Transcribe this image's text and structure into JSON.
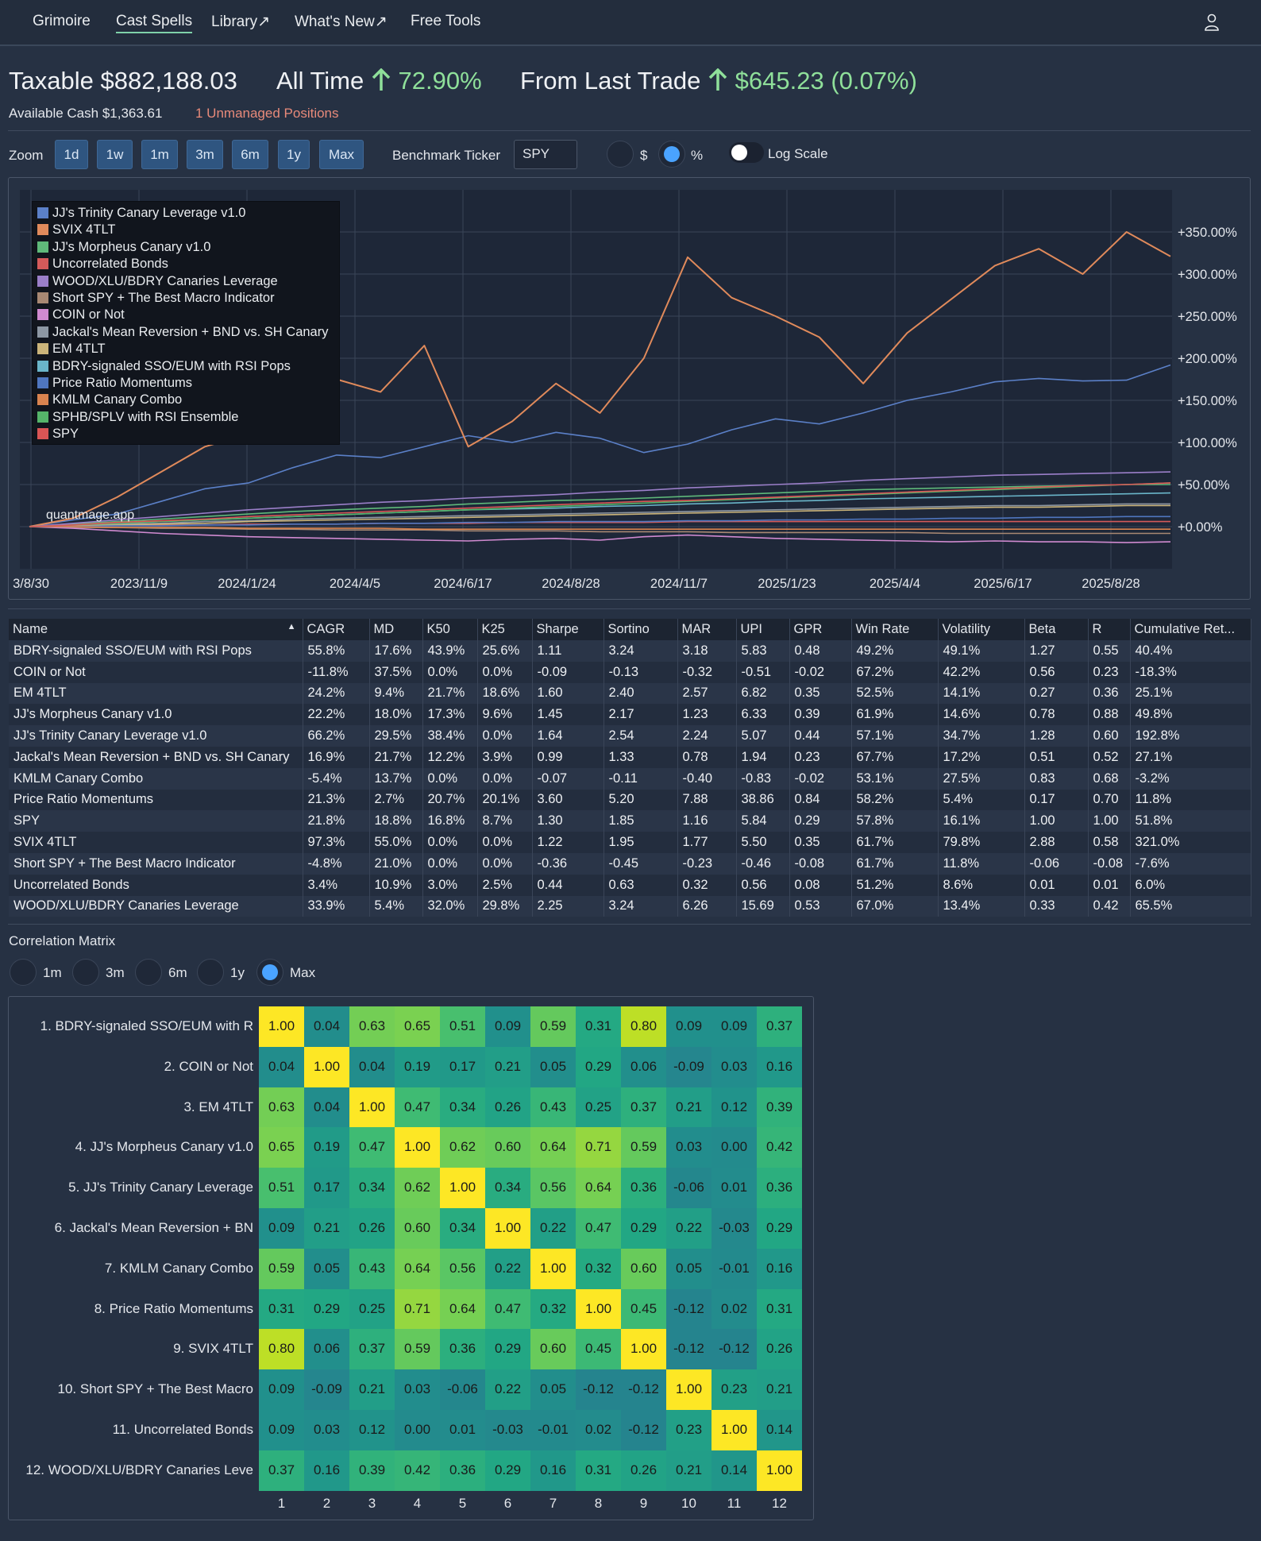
{
  "nav": {
    "items": [
      "Grimoire",
      "Cast Spells",
      "Library↗",
      "What's New↗",
      "Free Tools"
    ],
    "active": "Cast Spells"
  },
  "header": {
    "account": "Taxable",
    "value": "$882,188.03",
    "all_time_label": "All Time",
    "all_time_value": "72.90%",
    "last_trade_label": "From Last Trade",
    "last_trade_value": "$645.23 (0.07%)",
    "available_cash_label": "Available Cash",
    "available_cash": "$1,363.61",
    "unmanaged": "1 Unmanaged Positions"
  },
  "controls": {
    "zoom_label": "Zoom",
    "zoom_buttons": [
      "1d",
      "1w",
      "1m",
      "3m",
      "6m",
      "1y",
      "Max"
    ],
    "benchmark_label": "Benchmark Ticker",
    "benchmark_value": "SPY",
    "mode_options": [
      "$",
      "%"
    ],
    "mode_selected": "%",
    "log_scale_label": "Log Scale",
    "log_scale_on": false
  },
  "chart_data": {
    "type": "line",
    "watermark": "quantmage.app",
    "x_tick_labels": [
      "3/8/30",
      "2023/11/9",
      "2024/1/24",
      "2024/4/5",
      "2024/6/17",
      "2024/8/28",
      "2024/11/7",
      "2025/1/23",
      "2025/4/4",
      "2025/6/17",
      "2025/8/28"
    ],
    "y_tick_labels": [
      "+350.00%",
      "+300.00%",
      "+250.00%",
      "+200.00%",
      "+150.00%",
      "+100.00%",
      "+50.00%",
      "+0.00%"
    ],
    "y_ticks": [
      350,
      300,
      250,
      200,
      150,
      100,
      50,
      0
    ],
    "ylim": [
      -50,
      400
    ],
    "legend_position": "top-left",
    "series": [
      {
        "name": "JJ's Trinity Canary Leverage v1.0",
        "color": "#5b80c8",
        "values": [
          0,
          8,
          15,
          30,
          45,
          52,
          70,
          85,
          82,
          95,
          108,
          100,
          112,
          105,
          88,
          98,
          115,
          128,
          122,
          135,
          150,
          160,
          172,
          176,
          173,
          174,
          192
        ]
      },
      {
        "name": "SVIX 4TLT",
        "color": "#e08a5b",
        "values": [
          0,
          10,
          35,
          65,
          95,
          110,
          140,
          175,
          160,
          215,
          95,
          125,
          170,
          135,
          200,
          320,
          272,
          250,
          225,
          170,
          230,
          270,
          310,
          330,
          300,
          350,
          321
        ]
      },
      {
        "name": "JJ's Morpheus Canary v1.0",
        "color": "#5fb97a",
        "values": [
          0,
          3,
          6,
          9,
          12,
          15,
          18,
          20,
          22,
          24,
          27,
          29,
          31,
          32,
          34,
          36,
          38,
          40,
          42,
          44,
          45,
          46,
          47,
          48,
          49,
          50,
          50
        ]
      },
      {
        "name": "Uncorrelated Bonds",
        "color": "#d45a5a",
        "values": [
          0,
          1,
          1,
          2,
          2,
          3,
          3,
          3,
          4,
          4,
          4,
          5,
          5,
          5,
          5,
          6,
          6,
          6,
          6,
          6,
          6,
          6,
          6,
          6,
          6,
          6,
          6
        ]
      },
      {
        "name": "WOOD/XLU/BDRY Canaries Leverage",
        "color": "#9b7fc9",
        "values": [
          0,
          4,
          8,
          12,
          16,
          20,
          23,
          26,
          29,
          31,
          34,
          36,
          38,
          41,
          43,
          46,
          48,
          50,
          52,
          55,
          57,
          59,
          61,
          62,
          63,
          64,
          65
        ]
      },
      {
        "name": "Short SPY + The Best Macro Indicator",
        "color": "#a88873",
        "values": [
          0,
          -1,
          -1,
          -2,
          -2,
          -3,
          -3,
          -4,
          -4,
          -4,
          -5,
          -5,
          -5,
          -6,
          -6,
          -6,
          -7,
          -7,
          -7,
          -7,
          -7,
          -8,
          -8,
          -8,
          -8,
          -8,
          -8
        ]
      },
      {
        "name": "COIN or Not",
        "color": "#d08ad0",
        "values": [
          0,
          -2,
          -5,
          -8,
          -10,
          -12,
          -13,
          -14,
          -15,
          -16,
          -17,
          -15,
          -14,
          -16,
          -12,
          -10,
          -12,
          -14,
          -15,
          -16,
          -17,
          -18,
          -17,
          -18,
          -18,
          -19,
          -18
        ]
      },
      {
        "name": "Jackal's Mean Reversion + BND vs. SH Canary",
        "color": "#8d97a3",
        "values": [
          0,
          1,
          3,
          4,
          6,
          7,
          9,
          10,
          11,
          12,
          13,
          14,
          15,
          16,
          17,
          18,
          19,
          20,
          21,
          22,
          23,
          24,
          25,
          25,
          26,
          27,
          27
        ]
      },
      {
        "name": "EM 4TLT",
        "color": "#cbb47a",
        "values": [
          0,
          1,
          2,
          3,
          4,
          6,
          7,
          8,
          9,
          10,
          11,
          12,
          13,
          14,
          15,
          16,
          17,
          18,
          19,
          20,
          21,
          22,
          23,
          23,
          24,
          25,
          25
        ]
      },
      {
        "name": "BDRY-signaled SSO/EUM with RSI Pops",
        "color": "#6ab5c9",
        "values": [
          0,
          2,
          4,
          6,
          8,
          10,
          12,
          14,
          16,
          18,
          20,
          21,
          22,
          24,
          25,
          27,
          28,
          30,
          31,
          33,
          34,
          35,
          36,
          37,
          38,
          39,
          40
        ]
      },
      {
        "name": "Price Ratio Momentums",
        "color": "#4f76bf",
        "values": [
          0,
          0,
          1,
          1,
          2,
          2,
          3,
          3,
          4,
          4,
          5,
          5,
          6,
          6,
          6,
          7,
          7,
          8,
          8,
          9,
          9,
          10,
          10,
          11,
          11,
          12,
          12
        ]
      },
      {
        "name": "KMLM Canary Combo",
        "color": "#d9834f",
        "values": [
          0,
          0,
          -1,
          -1,
          -1,
          -2,
          -2,
          -2,
          -2,
          -3,
          -3,
          -3,
          -3,
          -3,
          -3,
          -3,
          -3,
          -3,
          -3,
          -3,
          -3,
          -3,
          -3,
          -3,
          -3,
          -3,
          -3
        ]
      },
      {
        "name": "SPHB/SPLV with RSI Ensemble",
        "color": "#55b46a",
        "values": [
          0,
          2,
          4,
          6,
          8,
          10,
          12,
          14,
          16,
          18,
          20,
          22,
          24,
          26,
          28,
          30,
          32,
          34,
          36,
          38,
          40,
          42,
          44,
          46,
          48,
          50,
          52
        ]
      },
      {
        "name": "SPY",
        "color": "#d95555",
        "values": [
          0,
          2,
          5,
          7,
          9,
          12,
          14,
          16,
          18,
          20,
          22,
          24,
          26,
          28,
          30,
          31,
          33,
          35,
          37,
          39,
          41,
          43,
          45,
          47,
          49,
          50,
          52
        ]
      }
    ]
  },
  "table": {
    "columns": [
      "Name",
      "CAGR",
      "MD",
      "K50",
      "K25",
      "Sharpe",
      "Sortino",
      "MAR",
      "UPI",
      "GPR",
      "Win Rate",
      "Volatility",
      "Beta",
      "R",
      "Cumulative Ret..."
    ],
    "rows": [
      [
        "BDRY-signaled SSO/EUM with RSI Pops",
        "55.8%",
        "17.6%",
        "43.9%",
        "25.6%",
        "1.11",
        "3.24",
        "3.18",
        "5.83",
        "0.48",
        "49.2%",
        "49.1%",
        "1.27",
        "0.55",
        "40.4%"
      ],
      [
        "COIN or Not",
        "-11.8%",
        "37.5%",
        "0.0%",
        "0.0%",
        "-0.09",
        "-0.13",
        "-0.32",
        "-0.51",
        "-0.02",
        "67.2%",
        "42.2%",
        "0.56",
        "0.23",
        "-18.3%"
      ],
      [
        "EM 4TLT",
        "24.2%",
        "9.4%",
        "21.7%",
        "18.6%",
        "1.60",
        "2.40",
        "2.57",
        "6.82",
        "0.35",
        "52.5%",
        "14.1%",
        "0.27",
        "0.36",
        "25.1%"
      ],
      [
        "JJ's Morpheus Canary v1.0",
        "22.2%",
        "18.0%",
        "17.3%",
        "9.6%",
        "1.45",
        "2.17",
        "1.23",
        "6.33",
        "0.39",
        "61.9%",
        "14.6%",
        "0.78",
        "0.88",
        "49.8%"
      ],
      [
        "JJ's Trinity Canary Leverage v1.0",
        "66.2%",
        "29.5%",
        "38.4%",
        "0.0%",
        "1.64",
        "2.54",
        "2.24",
        "5.07",
        "0.44",
        "57.1%",
        "34.7%",
        "1.28",
        "0.60",
        "192.8%"
      ],
      [
        "Jackal's Mean Reversion + BND vs. SH Canary",
        "16.9%",
        "21.7%",
        "12.2%",
        "3.9%",
        "0.99",
        "1.33",
        "0.78",
        "1.94",
        "0.23",
        "67.7%",
        "17.2%",
        "0.51",
        "0.52",
        "27.1%"
      ],
      [
        "KMLM Canary Combo",
        "-5.4%",
        "13.7%",
        "0.0%",
        "0.0%",
        "-0.07",
        "-0.11",
        "-0.40",
        "-0.83",
        "-0.02",
        "53.1%",
        "27.5%",
        "0.83",
        "0.68",
        "-3.2%"
      ],
      [
        "Price Ratio Momentums",
        "21.3%",
        "2.7%",
        "20.7%",
        "20.1%",
        "3.60",
        "5.20",
        "7.88",
        "38.86",
        "0.84",
        "58.2%",
        "5.4%",
        "0.17",
        "0.70",
        "11.8%"
      ],
      [
        "SPY",
        "21.8%",
        "18.8%",
        "16.8%",
        "8.7%",
        "1.30",
        "1.85",
        "1.16",
        "5.84",
        "0.29",
        "57.8%",
        "16.1%",
        "1.00",
        "1.00",
        "51.8%"
      ],
      [
        "SVIX 4TLT",
        "97.3%",
        "55.0%",
        "0.0%",
        "0.0%",
        "1.22",
        "1.95",
        "1.77",
        "5.50",
        "0.35",
        "61.7%",
        "79.8%",
        "2.88",
        "0.58",
        "321.0%"
      ],
      [
        "Short SPY + The Best Macro Indicator",
        "-4.8%",
        "21.0%",
        "0.0%",
        "0.0%",
        "-0.36",
        "-0.45",
        "-0.23",
        "-0.46",
        "-0.08",
        "61.7%",
        "11.8%",
        "-0.06",
        "-0.08",
        "-7.6%"
      ],
      [
        "Uncorrelated Bonds",
        "3.4%",
        "10.9%",
        "3.0%",
        "2.5%",
        "0.44",
        "0.63",
        "0.32",
        "0.56",
        "0.08",
        "51.2%",
        "8.6%",
        "0.01",
        "0.01",
        "6.0%"
      ],
      [
        "WOOD/XLU/BDRY Canaries Leverage",
        "33.9%",
        "5.4%",
        "32.0%",
        "29.8%",
        "2.25",
        "3.24",
        "6.26",
        "15.69",
        "0.53",
        "67.0%",
        "13.4%",
        "0.33",
        "0.42",
        "65.5%"
      ]
    ]
  },
  "correlation": {
    "title": "Correlation Matrix",
    "periods": [
      "1m",
      "3m",
      "6m",
      "1y",
      "Max"
    ],
    "selected_period": "Max",
    "labels": [
      "1. BDRY-signaled SSO/EUM with R",
      "2. COIN or Not",
      "3. EM 4TLT",
      "4. JJ's Morpheus Canary v1.0",
      "5. JJ's Trinity Canary Leverage",
      "6. Jackal's Mean Reversion + BN",
      "7. KMLM Canary Combo",
      "8. Price Ratio Momentums",
      "9. SVIX 4TLT",
      "10. Short SPY + The Best Macro",
      "11. Uncorrelated Bonds",
      "12. WOOD/XLU/BDRY Canaries Leve"
    ],
    "col_labels": [
      "1",
      "2",
      "3",
      "4",
      "5",
      "6",
      "7",
      "8",
      "9",
      "10",
      "11",
      "12"
    ],
    "matrix": [
      [
        "1.00",
        "0.04",
        "0.63",
        "0.65",
        "0.51",
        "0.09",
        "0.59",
        "0.31",
        "0.80",
        "0.09",
        "0.09",
        "0.37"
      ],
      [
        "0.04",
        "1.00",
        "0.04",
        "0.19",
        "0.17",
        "0.21",
        "0.05",
        "0.29",
        "0.06",
        "-0.09",
        "0.03",
        "0.16"
      ],
      [
        "0.63",
        "0.04",
        "1.00",
        "0.47",
        "0.34",
        "0.26",
        "0.43",
        "0.25",
        "0.37",
        "0.21",
        "0.12",
        "0.39"
      ],
      [
        "0.65",
        "0.19",
        "0.47",
        "1.00",
        "0.62",
        "0.60",
        "0.64",
        "0.71",
        "0.59",
        "0.03",
        "0.00",
        "0.42"
      ],
      [
        "0.51",
        "0.17",
        "0.34",
        "0.62",
        "1.00",
        "0.34",
        "0.56",
        "0.64",
        "0.36",
        "-0.06",
        "0.01",
        "0.36"
      ],
      [
        "0.09",
        "0.21",
        "0.26",
        "0.60",
        "0.34",
        "1.00",
        "0.22",
        "0.47",
        "0.29",
        "0.22",
        "-0.03",
        "0.29"
      ],
      [
        "0.59",
        "0.05",
        "0.43",
        "0.64",
        "0.56",
        "0.22",
        "1.00",
        "0.32",
        "0.60",
        "0.05",
        "-0.01",
        "0.16"
      ],
      [
        "0.31",
        "0.29",
        "0.25",
        "0.71",
        "0.64",
        "0.47",
        "0.32",
        "1.00",
        "0.45",
        "-0.12",
        "0.02",
        "0.31"
      ],
      [
        "0.80",
        "0.06",
        "0.37",
        "0.59",
        "0.36",
        "0.29",
        "0.60",
        "0.45",
        "1.00",
        "-0.12",
        "-0.12",
        "0.26"
      ],
      [
        "0.09",
        "-0.09",
        "0.21",
        "0.03",
        "-0.06",
        "0.22",
        "0.05",
        "-0.12",
        "-0.12",
        "1.00",
        "0.23",
        "0.21"
      ],
      [
        "0.09",
        "0.03",
        "0.12",
        "0.00",
        "0.01",
        "-0.03",
        "-0.01",
        "0.02",
        "-0.12",
        "0.23",
        "1.00",
        "0.14"
      ],
      [
        "0.37",
        "0.16",
        "0.39",
        "0.42",
        "0.36",
        "0.29",
        "0.16",
        "0.31",
        "0.26",
        "0.21",
        "0.14",
        "1.00"
      ]
    ]
  }
}
